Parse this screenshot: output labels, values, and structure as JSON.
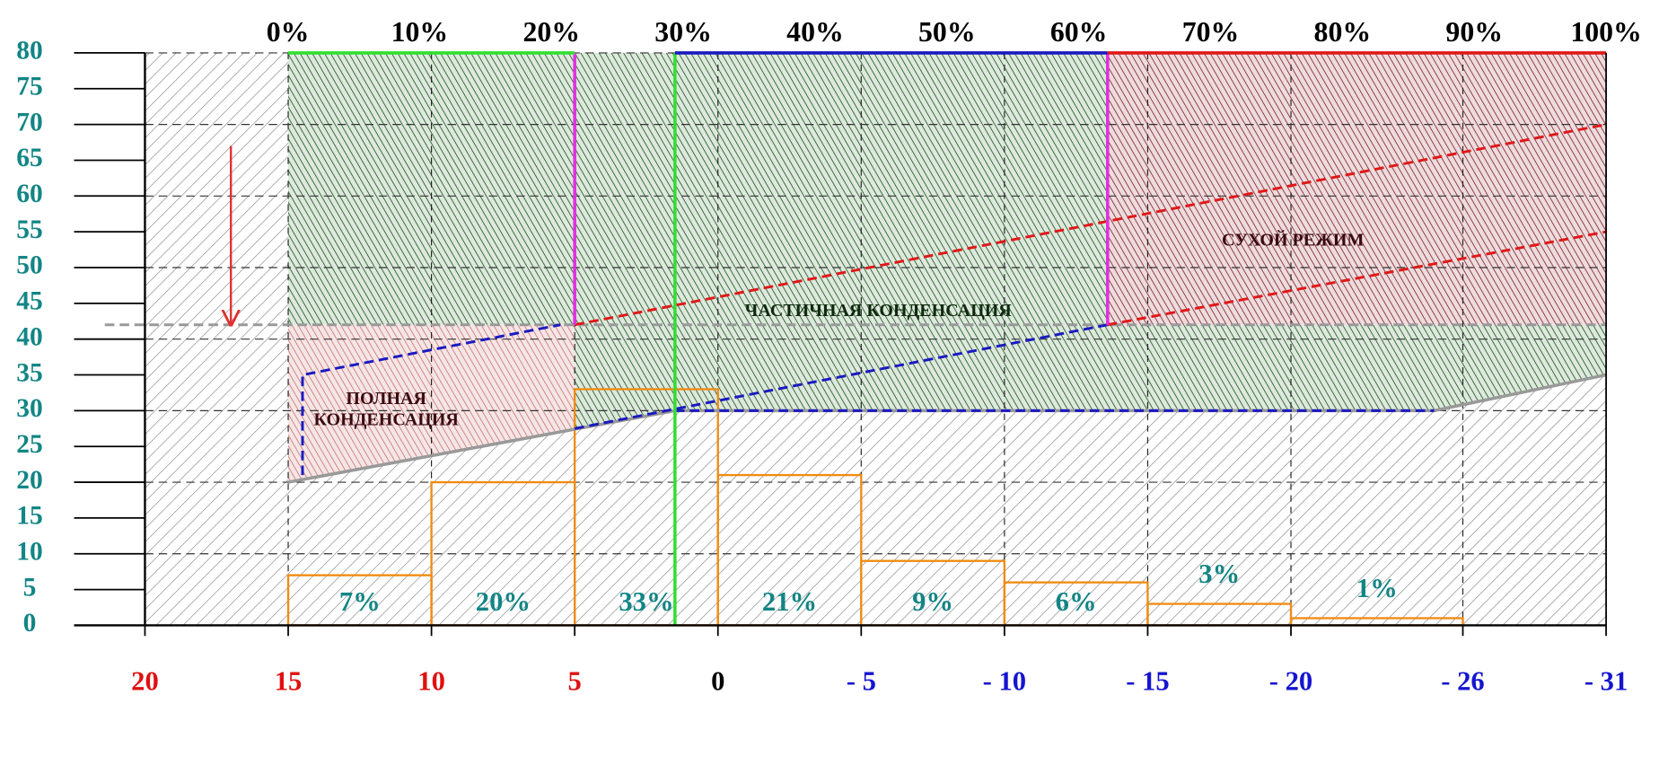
{
  "chart_data": {
    "type": "histogram",
    "xlim": [
      20,
      -31
    ],
    "ylim": [
      0,
      80
    ],
    "xticks": [
      20,
      15,
      10,
      5,
      0,
      {
        "value": -5,
        "label": "- 5"
      },
      {
        "value": -10,
        "label": "- 10"
      },
      {
        "value": -15,
        "label": "- 15"
      },
      {
        "value": -20,
        "label": "- 20"
      },
      {
        "value": -26,
        "label": "- 26"
      },
      {
        "value": -31,
        "label": "- 31"
      }
    ],
    "xtick_colors": [
      "#e01010",
      "#e01010",
      "#e01010",
      "#e01010",
      "#000000",
      "#1515d0",
      "#1515d0",
      "#1515d0",
      "#1515d0",
      "#1515d0",
      "#1515d0"
    ],
    "yticks": [
      0,
      5,
      10,
      15,
      20,
      25,
      30,
      35,
      40,
      45,
      50,
      55,
      60,
      65,
      70,
      75,
      80
    ],
    "ytick_color": "#138585",
    "x2lim": [
      0,
      100
    ],
    "x2ticks": [
      {
        "value": 0,
        "label": "0%"
      },
      {
        "value": 10,
        "label": "10%"
      },
      {
        "value": 20,
        "label": "20%"
      },
      {
        "value": 30,
        "label": "30%"
      },
      {
        "value": 40,
        "label": "40%"
      },
      {
        "value": 50,
        "label": "50%"
      },
      {
        "value": 60,
        "label": "60%"
      },
      {
        "value": 70,
        "label": "70%"
      },
      {
        "value": 80,
        "label": "80%"
      },
      {
        "value": 90,
        "label": "90%"
      },
      {
        "value": 100,
        "label": "100%"
      }
    ],
    "bins": [
      15,
      10,
      5,
      0,
      -5,
      -10,
      -15,
      -20,
      -26
    ],
    "values": [
      7,
      20,
      33,
      21,
      9,
      6,
      3,
      1
    ],
    "value_labels": [
      "7%",
      "20%",
      "33%",
      "21%",
      "9%",
      "6%",
      "3%",
      "1%"
    ],
    "color": "#f08c14",
    "label_color": "#138585",
    "zones": [
      {
        "label": "ЧАСТИЧНАЯ  КОНДЕНСАЦИЯ",
        "fill": "green",
        "points": [
          [
            15,
            80
          ],
          [
            -13.6,
            80
          ],
          [
            -13.6,
            42
          ],
          [
            -31,
            42
          ],
          [
            -31,
            35
          ],
          [
            -25,
            30
          ],
          [
            1.5,
            30
          ],
          [
            5,
            27.5
          ],
          [
            5,
            42
          ],
          [
            15,
            42
          ]
        ]
      },
      {
        "label": [
          "ПОЛНАЯ",
          "КОНДЕНСАЦИЯ"
        ],
        "fill": "pink",
        "points": [
          [
            15,
            42
          ],
          [
            5,
            42
          ],
          [
            5,
            27.5
          ],
          [
            15,
            20
          ]
        ]
      },
      {
        "label": "СУХОЙ РЕЖИМ",
        "fill": "darkred",
        "points": [
          [
            -13.6,
            80
          ],
          [
            -31,
            80
          ],
          [
            -31,
            42
          ],
          [
            -13.6,
            42
          ]
        ]
      }
    ],
    "lines": [
      {
        "color": "#999999",
        "dashed": false,
        "x": [
          15,
          1.5,
          -25,
          -31
        ],
        "y": [
          20,
          30,
          30,
          35
        ]
      },
      {
        "color": "#999999",
        "dashed": true,
        "x": [
          21.4,
          -31
        ],
        "y": [
          42,
          42
        ]
      },
      {
        "color": "#1a1ac0",
        "dashed": true,
        "x": [
          14.5,
          14.5,
          5.5
        ],
        "y": [
          21,
          35,
          42
        ]
      },
      {
        "color": "#1a1ac0",
        "dashed": true,
        "x": [
          5,
          -13.6
        ],
        "y": [
          27.5,
          42
        ]
      },
      {
        "color": "#1a1ac0",
        "dashed": true,
        "x": [
          1.5,
          -25
        ],
        "y": [
          30,
          30
        ]
      },
      {
        "color": "#e01818",
        "dashed": true,
        "x": [
          5,
          -31
        ],
        "y": [
          42,
          70
        ]
      },
      {
        "color": "#e01818",
        "dashed": true,
        "x": [
          -13.6,
          -31
        ],
        "y": [
          42,
          55
        ]
      },
      {
        "color": "#e030e0",
        "dashed": false,
        "x": [
          5,
          5
        ],
        "y": [
          42,
          80
        ]
      },
      {
        "color": "#e030e0",
        "dashed": false,
        "x": [
          -13.6,
          -13.6
        ],
        "y": [
          42,
          80
        ]
      },
      {
        "color": "#30e030",
        "dashed": false,
        "x": [
          1.5,
          1.5
        ],
        "y": [
          0,
          80
        ]
      },
      {
        "color": "#30e030",
        "dashed": false,
        "x": [
          15,
          5
        ],
        "y": [
          80,
          80
        ]
      },
      {
        "color": "#1a1ac0",
        "dashed": false,
        "x": [
          1.5,
          -13.6
        ],
        "y": [
          80,
          80
        ]
      },
      {
        "color": "#e01818",
        "dashed": false,
        "x": [
          -13.6,
          -31
        ],
        "y": [
          80,
          80
        ]
      }
    ],
    "arrow": {
      "color": "#e03030",
      "x": 17,
      "y": [
        67,
        42
      ]
    }
  }
}
